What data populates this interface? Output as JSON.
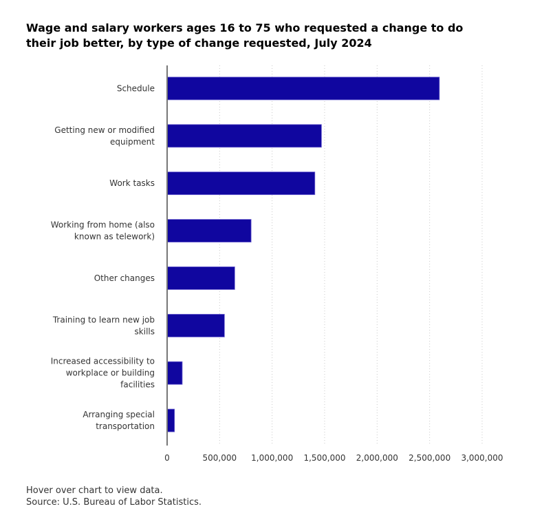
{
  "chart_data": {
    "type": "bar",
    "orientation": "horizontal",
    "title": "Wage and salary workers ages 16 to 75 who requested a change to do their job better, by type of change requested, July 2024",
    "categories": [
      [
        "Schedule"
      ],
      [
        "Getting new or modified",
        "equipment"
      ],
      [
        "Work tasks"
      ],
      [
        "Working from home (also",
        "known as telework)"
      ],
      [
        "Other changes"
      ],
      [
        "Training to learn new job",
        "skills"
      ],
      [
        "Increased accessibility to",
        "workplace or building",
        "facilities"
      ],
      [
        "Arranging special",
        "transportation"
      ]
    ],
    "values": [
      2593000,
      1470000,
      1407000,
      800000,
      644000,
      546000,
      144000,
      70000
    ],
    "xlim": [
      0,
      3000000
    ],
    "xticks": [
      0,
      500000,
      1000000,
      1500000,
      2000000,
      2500000,
      3000000
    ],
    "xtick_labels": [
      "0",
      "500,000",
      "1,000,000",
      "1,500,000",
      "2,000,000",
      "2,500,000",
      "3,000,000"
    ],
    "grid": "vertical dotted",
    "bar_color": "#10069f"
  },
  "footer": {
    "hint": "Hover over chart to view data.",
    "source": "Source: U.S. Bureau of Labor Statistics."
  }
}
